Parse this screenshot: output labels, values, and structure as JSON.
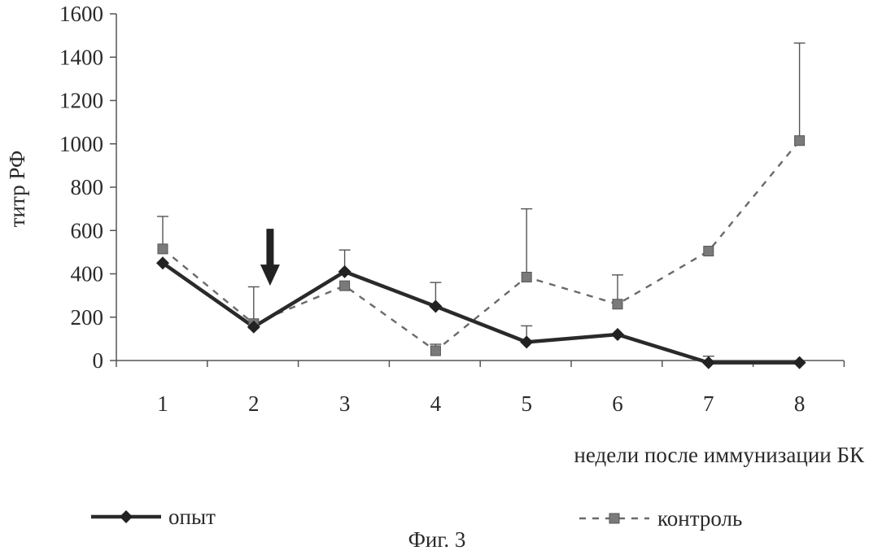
{
  "chart_data": {
    "type": "line",
    "title": "",
    "xlabel": "недели после иммунизации БК",
    "ylabel": "титр РФ",
    "categories": [
      "1",
      "2",
      "3",
      "4",
      "5",
      "6",
      "7",
      "8"
    ],
    "x": [
      1,
      2,
      3,
      4,
      5,
      6,
      7,
      8
    ],
    "ylim": [
      0,
      1600
    ],
    "yticks": [
      0,
      200,
      400,
      600,
      800,
      1000,
      1200,
      1400,
      1600
    ],
    "grid": false,
    "legend_position": "bottom",
    "series": [
      {
        "name": "опыт",
        "values": [
          450,
          155,
          410,
          250,
          85,
          120,
          -10,
          -10
        ],
        "error_plus": [
          0,
          0,
          100,
          110,
          75,
          0,
          30,
          0
        ],
        "style": "solid",
        "marker": "diamond",
        "color": "#2a2a2a"
      },
      {
        "name": "контроль",
        "values": [
          515,
          170,
          345,
          45,
          385,
          260,
          505,
          1015
        ],
        "error_plus": [
          150,
          170,
          0,
          30,
          315,
          135,
          0,
          450
        ],
        "style": "dashed",
        "marker": "square",
        "color": "#6a6a6a"
      }
    ],
    "annotations": [
      {
        "type": "arrow-down",
        "x": 2.18,
        "y": 345
      }
    ]
  },
  "caption": "Фиг. 3"
}
